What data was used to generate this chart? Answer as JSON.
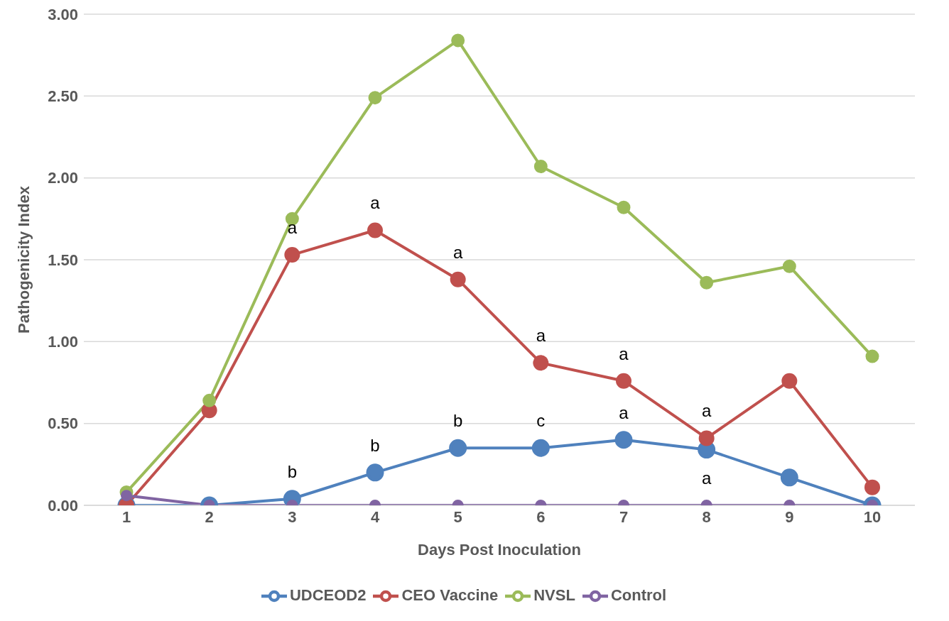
{
  "chart_data": {
    "type": "line",
    "xlabel": "Days Post Inoculation",
    "ylabel": "Pathogenicity Index",
    "categories": [
      "1",
      "2",
      "3",
      "4",
      "5",
      "6",
      "7",
      "8",
      "9",
      "10"
    ],
    "series": [
      {
        "name": "UDCEOD2",
        "color": "#4f81bd",
        "values": [
          0,
          0,
          0.04,
          0.2,
          0.35,
          0.35,
          0.4,
          0.34,
          0.17,
          0
        ]
      },
      {
        "name": "CEO Vaccine",
        "color": "#c0504d",
        "values": [
          0,
          0.58,
          1.53,
          1.68,
          1.38,
          0.87,
          0.76,
          0.41,
          0.76,
          0.11
        ]
      },
      {
        "name": "NVSL",
        "color": "#9bbb59",
        "values": [
          0.08,
          0.64,
          1.75,
          2.49,
          2.84,
          2.07,
          1.82,
          1.36,
          1.46,
          0.91
        ]
      },
      {
        "name": "Control",
        "color": "#8064a2",
        "values": [
          0.06,
          0,
          0,
          0,
          0,
          0,
          0,
          0,
          0,
          0
        ]
      }
    ],
    "ylim": [
      0,
      3
    ],
    "yticks": [
      {
        "value": 0,
        "label": "0.00"
      },
      {
        "value": 0.5,
        "label": "0.50"
      },
      {
        "value": 1,
        "label": "1.00"
      },
      {
        "value": 1.5,
        "label": "1.50"
      },
      {
        "value": 2,
        "label": "2.00"
      },
      {
        "value": 2.5,
        "label": "2.50"
      },
      {
        "value": 3,
        "label": "3.00"
      }
    ],
    "grid": "y",
    "legend": "bottom",
    "marker": "circle",
    "line_style": "solid",
    "annotations": [
      {
        "text": "a",
        "x": "3",
        "y": 1.53
      },
      {
        "text": "a",
        "x": "4",
        "y": 1.68
      },
      {
        "text": "a",
        "x": "5",
        "y": 1.38
      },
      {
        "text": "a",
        "x": "6",
        "y": 0.87
      },
      {
        "text": "a",
        "x": "7",
        "y": 0.76
      },
      {
        "text": "a",
        "x": "8",
        "y": 0.41
      },
      {
        "text": "b",
        "x": "3",
        "y": 0.04
      },
      {
        "text": "b",
        "x": "4",
        "y": 0.2
      },
      {
        "text": "b",
        "x": "5",
        "y": 0.35
      },
      {
        "text": "c",
        "x": "6",
        "y": 0.35
      },
      {
        "text": "a",
        "x": "7",
        "y": 0.4
      },
      {
        "text": "a",
        "x": "8",
        "y": 0
      }
    ]
  }
}
